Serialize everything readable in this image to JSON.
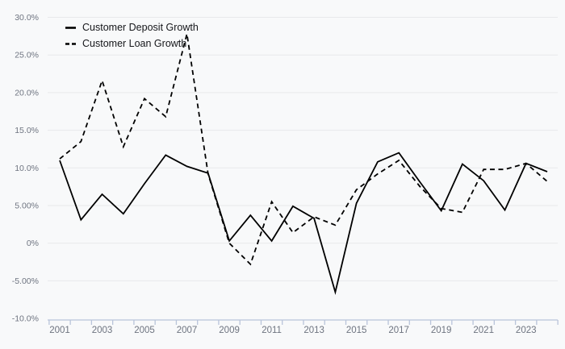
{
  "chart_data": {
    "type": "line",
    "title": "",
    "x_label": "",
    "y_label": "",
    "x": [
      2001,
      2002,
      2003,
      2004,
      2005,
      2006,
      2007,
      2008,
      2009,
      2010,
      2011,
      2012,
      2013,
      2014,
      2015,
      2016,
      2017,
      2018,
      2019,
      2020,
      2021,
      2022,
      2023,
      2024
    ],
    "series": [
      {
        "name": "Customer Deposit Growth",
        "style": "solid",
        "color": "#000000",
        "values": [
          11.0,
          3.1,
          6.5,
          3.9,
          7.9,
          11.7,
          10.2,
          9.3,
          0.3,
          3.7,
          0.3,
          4.9,
          3.3,
          -6.5,
          5.3,
          10.8,
          12.0,
          8.1,
          4.3,
          10.5,
          8.3,
          4.4,
          10.6,
          9.5
        ]
      },
      {
        "name": "Customer Loan Growth",
        "style": "dashed",
        "color": "#000000",
        "values": [
          11.2,
          13.5,
          21.6,
          12.8,
          19.2,
          16.8,
          27.8,
          9.2,
          0.0,
          -2.8,
          5.5,
          1.4,
          3.5,
          2.4,
          7.1,
          9.2,
          11.0,
          7.5,
          4.6,
          4.1,
          9.8,
          9.8,
          10.6,
          8.2
        ]
      }
    ],
    "y_axis": {
      "range": [
        -10,
        30
      ],
      "ticks": [
        {
          "value": 30,
          "label": "30.0%"
        },
        {
          "value": 25,
          "label": "25.0%"
        },
        {
          "value": 20,
          "label": "20.0%"
        },
        {
          "value": 15,
          "label": "15.0%"
        },
        {
          "value": 10,
          "label": "10.0%"
        },
        {
          "value": 5,
          "label": "5.00%"
        },
        {
          "value": 0,
          "label": "0%"
        },
        {
          "value": -5,
          "label": "-5.00%"
        },
        {
          "value": -10,
          "label": "-10.0%"
        }
      ]
    },
    "x_axis": {
      "tick_labels": [
        "2001",
        "2003",
        "2005",
        "2007",
        "2009",
        "2011",
        "2013",
        "2015",
        "2017",
        "2019",
        "2021",
        "2023"
      ],
      "label_years": [
        2001,
        2003,
        2005,
        2007,
        2009,
        2011,
        2013,
        2015,
        2017,
        2019,
        2021,
        2023
      ],
      "boundary_ticks_every_year": true
    },
    "legend_position": "top-left",
    "grid": true,
    "colors": {
      "background": "#f8f9fa",
      "gridline": "#e8e9eb",
      "axis_line": "#b9c4da",
      "tick_label": "#6e7480",
      "legend_text": "#15161a",
      "line": "#000000"
    }
  }
}
